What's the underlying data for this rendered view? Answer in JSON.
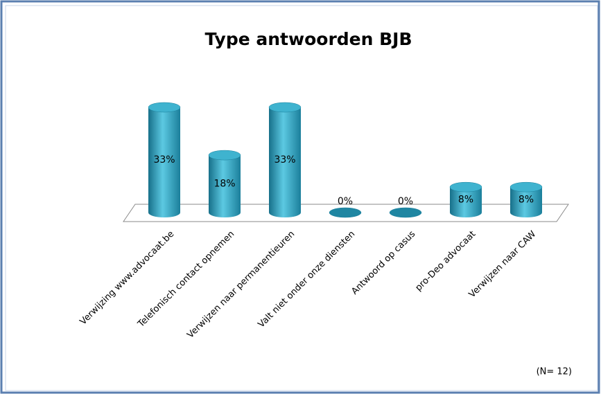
{
  "chart_data": {
    "type": "bar3d",
    "title": "Type antwoorden BJB",
    "categories": [
      "Verwijzing www.advocaat.be",
      "Telefonisch contact opnemen",
      "Verwijzen naar permanentieuren",
      "Valt niet onder onze diensten",
      "Antwoord op  casus",
      "pro-Deo advocaat",
      "Verwijzen naar CAW"
    ],
    "values": [
      33,
      18,
      33,
      0,
      0,
      8,
      8
    ],
    "value_labels": [
      "33%",
      "18%",
      "33%",
      "0%",
      "0%",
      "8%",
      "8%"
    ],
    "color": "#31a6c4",
    "annotation": "(N= 12)"
  }
}
